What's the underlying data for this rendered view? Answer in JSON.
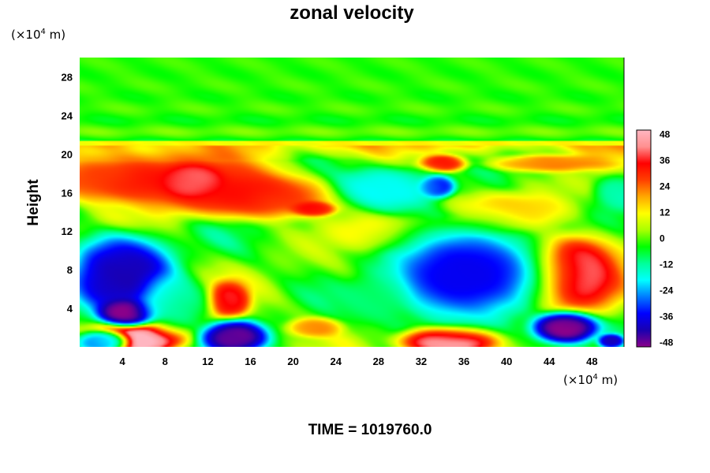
{
  "chart_data": {
    "type": "heatmap",
    "title": "zonal velocity",
    "ylabel": "Height",
    "xunit_prefix": "(×10",
    "xunit_exp": "4",
    "xunit_suffix": " m)",
    "yunit_prefix": "(×10",
    "yunit_exp": "4",
    "yunit_suffix": " m)",
    "xlim": [
      0,
      51
    ],
    "ylim": [
      0,
      30
    ],
    "xticks": [
      "4",
      "8",
      "12",
      "16",
      "20",
      "24",
      "28",
      "32",
      "36",
      "40",
      "44",
      "48"
    ],
    "yticks": [
      "4",
      "8",
      "12",
      "16",
      "20",
      "24",
      "28"
    ],
    "colorbar": {
      "range": [
        -50,
        50
      ],
      "ticks": [
        "48",
        "36",
        "24",
        "12",
        "0",
        "-12",
        "-24",
        "-36",
        "-48"
      ]
    },
    "colormap": [
      "#8a008a",
      "#1a00b0",
      "#0000ff",
      "#007bff",
      "#00ffff",
      "#00ff9a",
      "#00ff00",
      "#a8ff00",
      "#ffff00",
      "#ffa800",
      "#ff4000",
      "#ff0000",
      "#ff9090",
      "#ffb6c1"
    ],
    "features": [
      {
        "x": 5.5,
        "y": 1.0,
        "rx": 3.5,
        "ry": 1.4,
        "v": 52
      },
      {
        "x": 10.5,
        "y": 17.2,
        "rx": 2.2,
        "ry": 1.3,
        "v": 50
      },
      {
        "x": 11.0,
        "y": 17.0,
        "rx": 6.0,
        "ry": 2.6,
        "v": 30
      },
      {
        "x": 3.0,
        "y": 17.5,
        "rx": 5.0,
        "ry": 2.0,
        "v": 28
      },
      {
        "x": 17.5,
        "y": 15.5,
        "rx": 5.0,
        "ry": 1.8,
        "v": 28
      },
      {
        "x": 22.0,
        "y": 14.3,
        "rx": 1.6,
        "ry": 0.6,
        "v": 30
      },
      {
        "x": 14.0,
        "y": 4.8,
        "rx": 1.6,
        "ry": 1.6,
        "v": 34
      },
      {
        "x": 34.5,
        "y": 0.6,
        "rx": 3.5,
        "ry": 1.2,
        "v": 50
      },
      {
        "x": 46.5,
        "y": 7.7,
        "rx": 2.3,
        "ry": 2.3,
        "v": 50
      },
      {
        "x": 46.5,
        "y": 7.5,
        "rx": 4.0,
        "ry": 3.5,
        "v": 30
      },
      {
        "x": 34.0,
        "y": 19.0,
        "rx": 1.8,
        "ry": 0.7,
        "v": 32
      },
      {
        "x": 40.5,
        "y": 14.0,
        "rx": 4.5,
        "ry": 1.6,
        "v": 16
      },
      {
        "x": 37.0,
        "y": 12.6,
        "rx": 3.0,
        "ry": 0.8,
        "v": 14
      },
      {
        "x": 29.0,
        "y": 11.8,
        "rx": 5.0,
        "ry": 1.5,
        "v": 12
      },
      {
        "x": 44.0,
        "y": 19.0,
        "rx": 4.5,
        "ry": 0.7,
        "v": 22
      },
      {
        "x": 36.0,
        "y": 7.5,
        "rx": 3.7,
        "ry": 2.4,
        "v": -55
      },
      {
        "x": 36.0,
        "y": 7.5,
        "rx": 6.5,
        "ry": 4.5,
        "v": -25
      },
      {
        "x": 4.5,
        "y": 3.5,
        "rx": 2.2,
        "ry": 1.1,
        "v": -50
      },
      {
        "x": 4.0,
        "y": 7.5,
        "rx": 4.0,
        "ry": 3.5,
        "v": -40
      },
      {
        "x": 14.5,
        "y": 1.0,
        "rx": 2.5,
        "ry": 1.4,
        "v": -46
      },
      {
        "x": 45.5,
        "y": 2.0,
        "rx": 2.5,
        "ry": 1.3,
        "v": -50
      },
      {
        "x": 49.8,
        "y": 0.6,
        "rx": 1.0,
        "ry": 0.6,
        "v": -40
      },
      {
        "x": 33.5,
        "y": 16.6,
        "rx": 1.3,
        "ry": 0.9,
        "v": -38
      },
      {
        "x": 29.0,
        "y": 16.5,
        "rx": 4.0,
        "ry": 1.8,
        "v": -18
      },
      {
        "x": 50.5,
        "y": 16.0,
        "rx": 1.8,
        "ry": 1.6,
        "v": -12
      },
      {
        "x": 2.0,
        "y": 0.5,
        "rx": 2.0,
        "ry": 1.0,
        "v": -30
      },
      {
        "x": 9.0,
        "y": 4.5,
        "rx": 2.5,
        "ry": 2.5,
        "v": -12
      },
      {
        "x": 22.0,
        "y": 2.0,
        "rx": 2.0,
        "ry": 0.8,
        "v": 20
      },
      {
        "x": 27.5,
        "y": 5.0,
        "rx": 2.5,
        "ry": 2.0,
        "v": -8
      }
    ]
  },
  "time_label": "TIME = 1019760.0"
}
